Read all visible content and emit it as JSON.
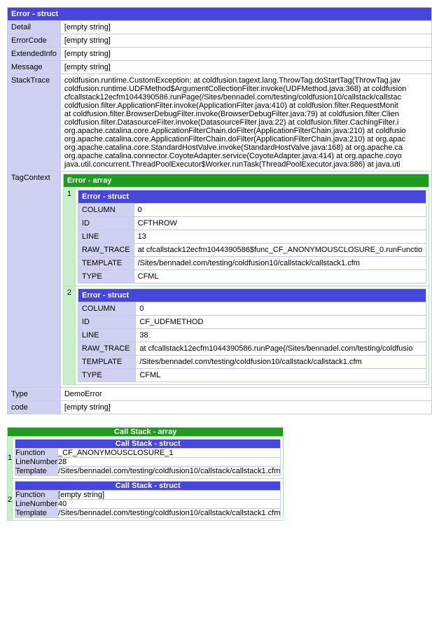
{
  "error": {
    "header": "Error - struct",
    "detail_key": "Detail",
    "detail_val": "[empty string]",
    "errorcode_key": "ErrorCode",
    "errorcode_val": "[empty string]",
    "extendedinfo_key": "ExtendedInfo",
    "extendedinfo_val": "[empty string]",
    "message_key": "Message",
    "message_val": "[empty string]",
    "stacktrace_key": "StackTrace",
    "stacktrace_l1": "coldfusion.runtime.CustomException: at coldfusion.tagext.lang.ThrowTag.doStartTag(ThrowTag.jav",
    "stacktrace_l2": "coldfusion.runtime.UDFMethod$ArgumentCollectionFilter.invoke(UDFMethod.java:368) at coldfusion",
    "stacktrace_l3": "cfcallstack12ecfm1044390586.runPage(/Sites/bennadel.com/testing/coldfusion10/callstack/callstac",
    "stacktrace_l4": "coldfusion.filter.ApplicationFilter.invoke(ApplicationFilter.java:410) at coldfusion.filter.RequestMonit",
    "stacktrace_l5": "at coldfusion.filter.BrowserDebugFilter.invoke(BrowserDebugFilter.java:79) at coldfusion.filter.Clien",
    "stacktrace_l6": "coldfusion.filter.DatasourceFilter.invoke(DatasourceFilter.java:22) at coldfusion.filter.CachingFilter.i",
    "stacktrace_l7": "org.apache.catalina.core.ApplicationFilterChain.doFilter(ApplicationFilterChain.java:210) at coldfusio",
    "stacktrace_l8": "org.apache.catalina.core.ApplicationFilterChain.doFilter(ApplicationFilterChain.java:210) at org.apac",
    "stacktrace_l9": "org.apache.catalina.core.StandardHostValve.invoke(StandardHostValve.java:168) at org.apache.ca",
    "stacktrace_l10": "org.apache.catalina.connector.CoyoteAdapter.service(CoyoteAdapter.java:414) at org.apache.coyo",
    "stacktrace_l11": "java.util.concurrent.ThreadPoolExecutor$Worker.runTask(ThreadPoolExecutor.java:886) at java.uti",
    "tagcontext_key": "TagContext",
    "type_key": "Type",
    "type_val": "DemoError",
    "code_key": "code",
    "code_val": "[empty string]"
  },
  "tagcontext": {
    "header": "Error - array",
    "idx1": "1",
    "idx2": "2",
    "struct_header": "Error - struct",
    "item1": {
      "column_key": "COLUMN",
      "column_val": "0",
      "id_key": "ID",
      "id_val": "CFTHROW",
      "line_key": "LINE",
      "line_val": "13",
      "rawtrace_key": "RAW_TRACE",
      "rawtrace_val": "at cfcallstack12ecfm1044390586$func_CF_ANONYMOUSCLOSURE_0.runFunctio",
      "template_key": "TEMPLATE",
      "template_val": "/Sites/bennadel.com/testing/coldfusion10/callstack/callstack1.cfm",
      "type_key": "TYPE",
      "type_val": "CFML"
    },
    "item2": {
      "column_key": "COLUMN",
      "column_val": "0",
      "id_key": "ID",
      "id_val": "CF_UDFMETHOD",
      "line_key": "LINE",
      "line_val": "38",
      "rawtrace_key": "RAW_TRACE",
      "rawtrace_val": "at cfcallstack12ecfm1044390586.runPage(/Sites/bennadel.com/testing/coldfusio",
      "template_key": "TEMPLATE",
      "template_val": "/Sites/bennadel.com/testing/coldfusion10/callstack/callstack1.cfm",
      "type_key": "TYPE",
      "type_val": "CFML"
    }
  },
  "callstack": {
    "header": "Call Stack - array",
    "struct_header": "Call Stack - struct",
    "idx1": "1",
    "idx2": "2",
    "item1": {
      "function_key": "Function",
      "function_val": "_CF_ANONYMOUSCLOSURE_1",
      "linenumber_key": "LineNumber",
      "linenumber_val": "28",
      "template_key": "Template",
      "template_val": "/Sites/bennadel.com/testing/coldfusion10/callstack/callstack1.cfm"
    },
    "item2": {
      "function_key": "Function",
      "function_val": "[empty string]",
      "linenumber_key": "LineNumber",
      "linenumber_val": "40",
      "template_key": "Template",
      "template_val": "/Sites/bennadel.com/testing/coldfusion10/callstack/callstack1.cfm"
    }
  }
}
